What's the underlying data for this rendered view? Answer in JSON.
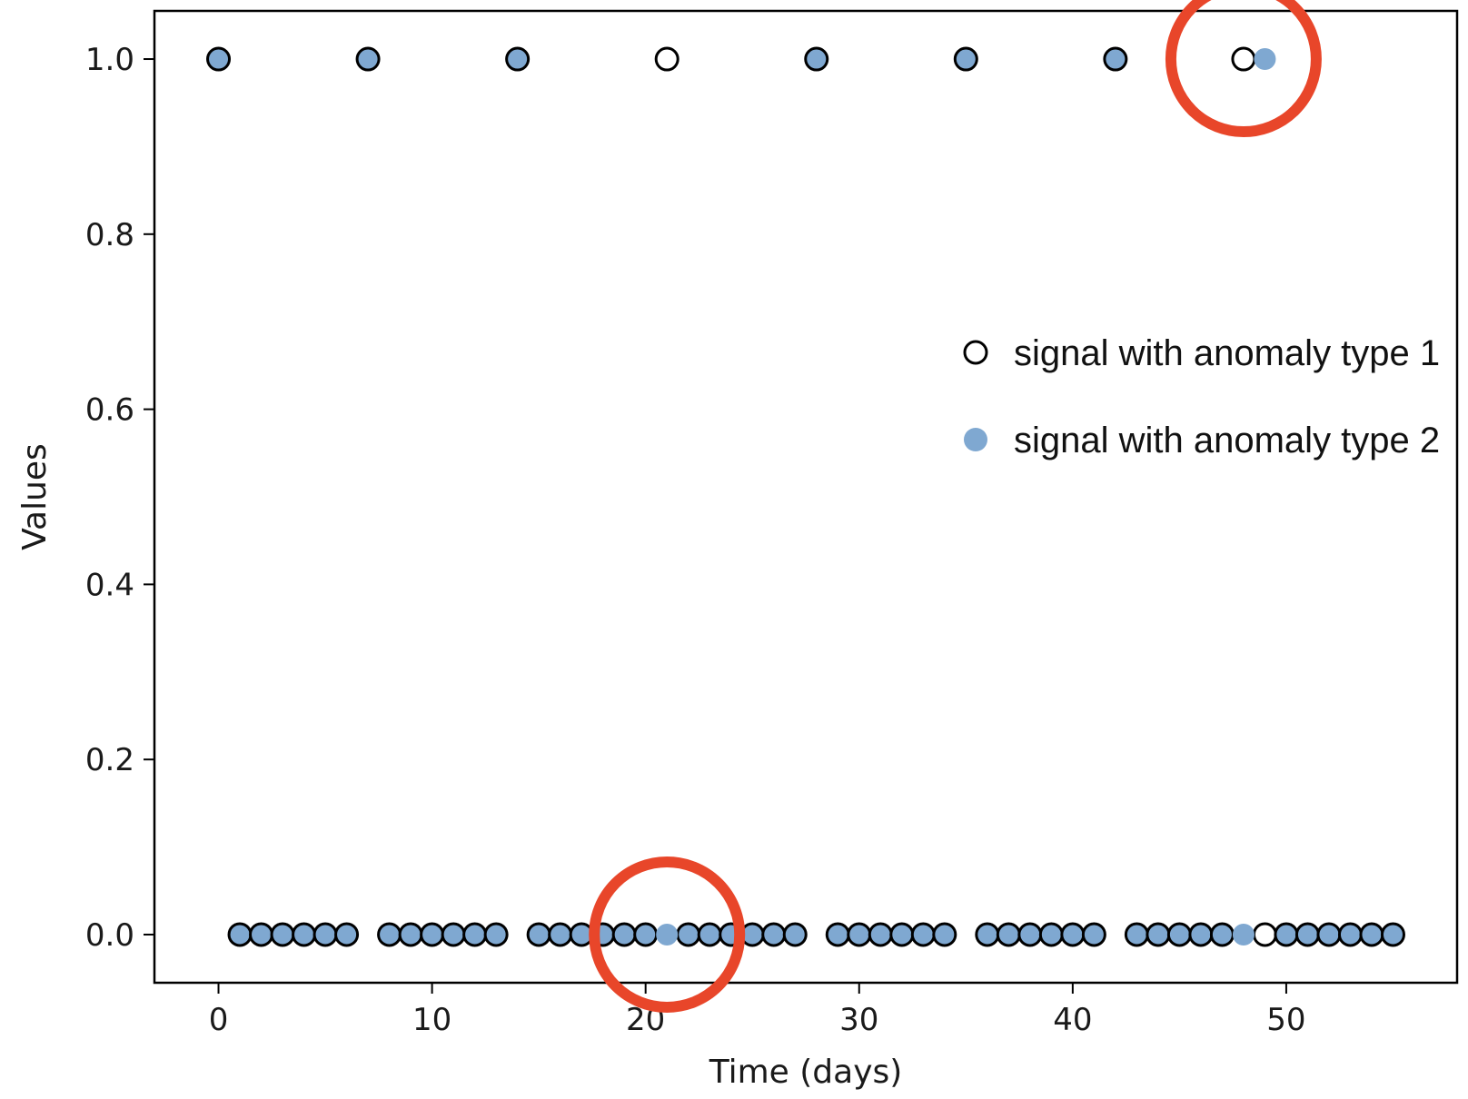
{
  "chart_data": {
    "type": "scatter",
    "title": "",
    "xlabel": "Time (days)",
    "ylabel": "Values",
    "xlim": [
      -3,
      58
    ],
    "ylim": [
      -0.055,
      1.055
    ],
    "xticks": [
      0,
      10,
      20,
      30,
      40,
      50
    ],
    "yticks": [
      0.0,
      0.2,
      0.4,
      0.6,
      0.8,
      1.0
    ],
    "xtick_labels": [
      "0",
      "10",
      "20",
      "30",
      "40",
      "50"
    ],
    "ytick_labels": [
      "0.0",
      "0.2",
      "0.4",
      "0.6",
      "0.8",
      "1.0"
    ],
    "grid": false,
    "legend_position": "center-right",
    "series": [
      {
        "name": "signal with anomaly type 1",
        "marker": "hollow-circle",
        "color": "#000000",
        "x": [
          0,
          1,
          2,
          3,
          4,
          5,
          6,
          7,
          8,
          9,
          10,
          11,
          12,
          13,
          14,
          15,
          16,
          17,
          18,
          19,
          20,
          21,
          22,
          23,
          24,
          25,
          26,
          27,
          28,
          29,
          30,
          31,
          32,
          33,
          34,
          35,
          36,
          37,
          38,
          39,
          40,
          41,
          42,
          43,
          44,
          45,
          46,
          47,
          48,
          49,
          50,
          51,
          52,
          53,
          54,
          55
        ],
        "y": [
          1,
          0,
          0,
          0,
          0,
          0,
          0,
          1,
          0,
          0,
          0,
          0,
          0,
          0,
          1,
          0,
          0,
          0,
          0,
          0,
          0,
          1,
          0,
          0,
          0,
          0,
          0,
          0,
          1,
          0,
          0,
          0,
          0,
          0,
          0,
          1,
          0,
          0,
          0,
          0,
          0,
          0,
          1,
          0,
          0,
          0,
          0,
          0,
          1,
          0,
          0,
          0,
          0,
          0,
          0,
          0
        ]
      },
      {
        "name": "signal with anomaly type 2",
        "marker": "filled-circle",
        "color": "#7fa8d1",
        "x": [
          0,
          1,
          2,
          3,
          4,
          5,
          6,
          7,
          8,
          9,
          10,
          11,
          12,
          13,
          14,
          15,
          16,
          17,
          18,
          19,
          20,
          21,
          22,
          23,
          24,
          25,
          26,
          27,
          28,
          29,
          30,
          31,
          32,
          33,
          34,
          35,
          36,
          37,
          38,
          39,
          40,
          41,
          42,
          43,
          44,
          45,
          46,
          47,
          48,
          49,
          50,
          51,
          52,
          53,
          54,
          55
        ],
        "y": [
          1,
          0,
          0,
          0,
          0,
          0,
          0,
          1,
          0,
          0,
          0,
          0,
          0,
          0,
          1,
          0,
          0,
          0,
          0,
          0,
          0,
          0,
          0,
          0,
          0,
          0,
          0,
          0,
          1,
          0,
          0,
          0,
          0,
          0,
          0,
          1,
          0,
          0,
          0,
          0,
          0,
          0,
          1,
          0,
          0,
          0,
          0,
          0,
          0,
          1,
          0,
          0,
          0,
          0,
          0,
          0
        ]
      }
    ],
    "annotations": [
      {
        "shape": "circle",
        "color": "#e8462a",
        "x": 21,
        "y": 0.0
      },
      {
        "shape": "circle",
        "color": "#e8462a",
        "x": 48,
        "y": 1.0
      }
    ]
  }
}
